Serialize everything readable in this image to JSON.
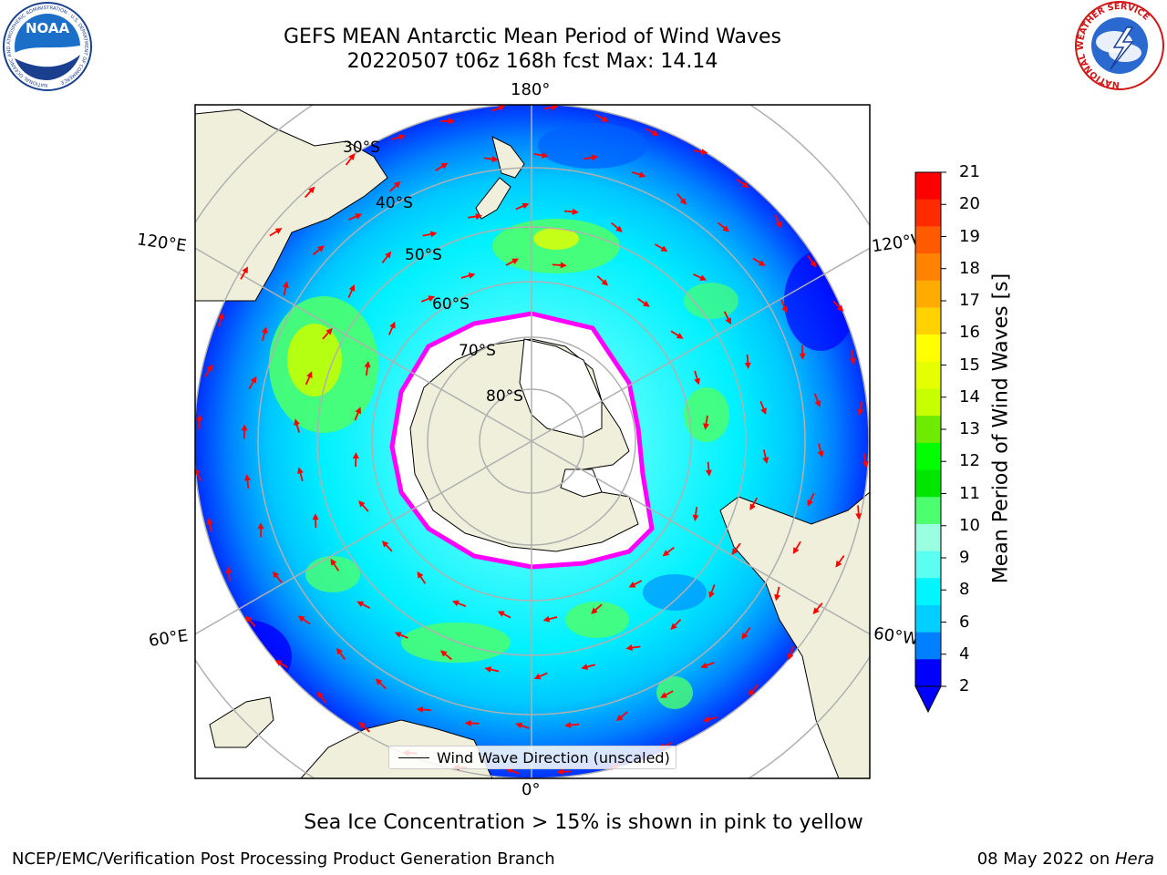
{
  "title": {
    "line1": "GEFS MEAN Antarctic Mean Period of Wind Waves",
    "line2": "20220507 t06z 168h fcst   Max: 14.14"
  },
  "map": {
    "projection": "south-polar-stereographic",
    "lon_labels": {
      "top": "180°",
      "upper_left": "120°E",
      "upper_right": "120°W",
      "lower_left": "60°E",
      "lower_right": "60°W",
      "bottom": "0°"
    },
    "lat_labels": [
      "30°S",
      "40°S",
      "50°S",
      "60°S",
      "70°S",
      "80°S"
    ],
    "legend": "Wind Wave Direction (unscaled)",
    "colors": {
      "land": "#efefdb",
      "ocean_low": "#0000ff",
      "ice_edge": "#ff00ff",
      "grid": "#b0b0b0"
    }
  },
  "colorbar": {
    "label": "Mean Period of Wind Waves [s]",
    "ticks": [
      "21",
      "20",
      "19",
      "18",
      "17",
      "16",
      "15",
      "14",
      "13",
      "12",
      "11",
      "10",
      "9",
      "8",
      "6",
      "4",
      "2"
    ],
    "colors": [
      "#ff0000",
      "#ff2a00",
      "#ff5a00",
      "#ff8200",
      "#ffab00",
      "#ffd200",
      "#ffff00",
      "#e6ff00",
      "#c8ff00",
      "#6eeb00",
      "#00ff00",
      "#00e600",
      "#4bff6e",
      "#9affe0",
      "#5bfff2",
      "#00f5ff",
      "#00cfff",
      "#0080ff",
      "#0000ff"
    ]
  },
  "caption": "Sea Ice Concentration > 15% is shown in pink to yellow",
  "footer": {
    "left": "NCEP/EMC/Verification Post Processing Product Generation Branch",
    "right_date": "08 May 2022 on ",
    "right_host": "Hera"
  },
  "logos": {
    "noaa_text": "NOAA",
    "noaa_ring": "NATIONAL OCEANIC AND ATMOSPHERIC ADMINISTRATION · U.S. DEPARTMENT OF COMMERCE",
    "nws_ring": "NATIONAL WEATHER SERVICE"
  }
}
